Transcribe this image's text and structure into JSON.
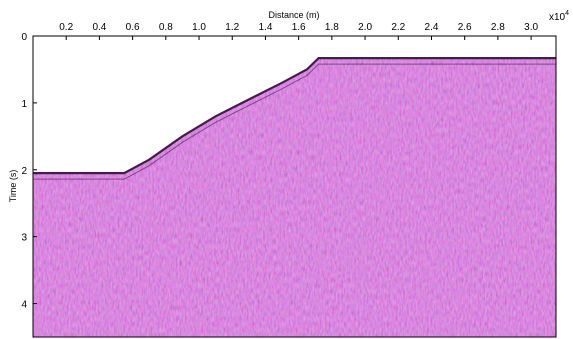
{
  "chart_data": {
    "type": "heatmap",
    "title": "",
    "xlabel": "Distance (m)",
    "ylabel": "Time (s)",
    "x_multiplier": {
      "base": "x10",
      "exponent": "4"
    },
    "xlim": [
      0,
      3.15
    ],
    "ylim": [
      0,
      4.5
    ],
    "y_inverted": true,
    "x_axis_position": "top",
    "x_ticks": [
      0.2,
      0.4,
      0.6,
      0.8,
      1.0,
      1.2,
      1.4,
      1.6,
      1.8,
      2.0,
      2.2,
      2.4,
      2.6,
      2.8,
      3.0
    ],
    "x_tick_labels": [
      "0.2",
      "0.4",
      "0.6",
      "0.8",
      "1.0",
      "1.2",
      "1.4",
      "1.6",
      "1.8",
      "2.0",
      "2.2",
      "2.4",
      "2.6",
      "2.8",
      "3.0"
    ],
    "y_ticks": [
      0,
      1,
      2,
      3,
      4
    ],
    "y_tick_labels": [
      "0",
      "1",
      "2",
      "3",
      "4"
    ],
    "seafloor_profile": {
      "x": [
        0.0,
        0.55,
        0.7,
        0.9,
        1.1,
        1.3,
        1.5,
        1.65,
        1.72,
        3.15
      ],
      "y": [
        2.05,
        2.05,
        1.85,
        1.5,
        1.2,
        0.95,
        0.7,
        0.5,
        0.33,
        0.33
      ]
    },
    "colors": {
      "background": "#c06ac4",
      "reflector": "#4a1850",
      "positive": "#e8a0d8",
      "negative": "#5a2a8a",
      "above_profile": "#ffffff"
    }
  }
}
